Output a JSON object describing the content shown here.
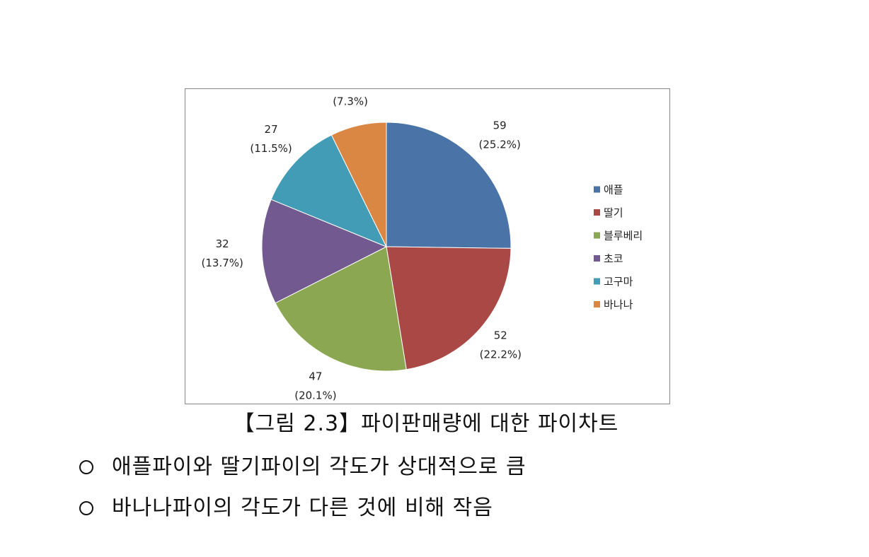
{
  "chart_data": {
    "type": "pie",
    "categories": [
      "애플",
      "딸기",
      "블루베리",
      "초코",
      "고구마",
      "바나나"
    ],
    "values": [
      59,
      52,
      47,
      32,
      27,
      17
    ],
    "percent_labels": [
      "(25.2%)",
      "(22.2%)",
      "(20.1%)",
      "(13.7%)",
      "(11.5%)",
      "(7.3%)"
    ],
    "colors": [
      "#4A74A8",
      "#AA4845",
      "#8CA751",
      "#725A91",
      "#439CB5",
      "#DA8744"
    ],
    "legend_position": "right",
    "start_angle": "12 o'clock",
    "direction": "clockwise"
  },
  "caption": "【그림 2.3】파이판매량에 대한 파이차트",
  "bullets": [
    "애플파이와 딸기파이의 각도가 상대적으로 큼",
    "바나나파이의 각도가 다른 것에 비해 작음"
  ]
}
